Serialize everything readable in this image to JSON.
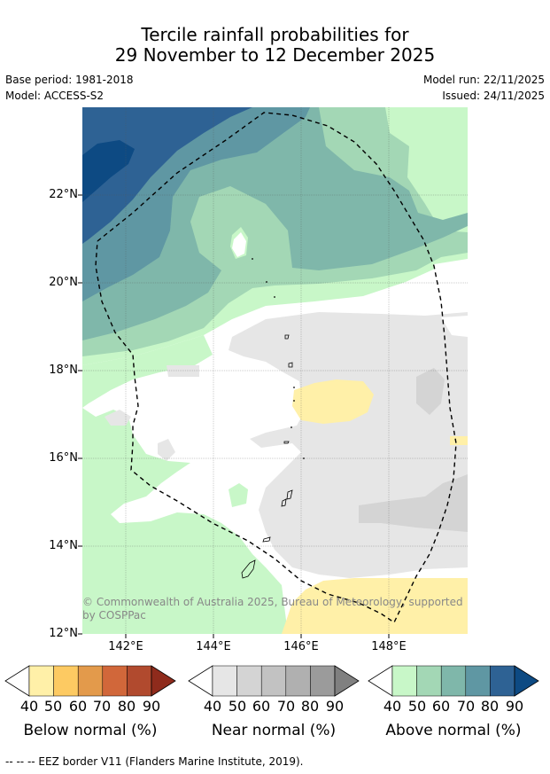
{
  "title": {
    "line1": "Tercile rainfall probabilities for",
    "line2": "29 November to 12 December 2025"
  },
  "meta": {
    "base_period": "Base period: 1981-2018",
    "model": "Model: ACCESS-S2",
    "model_run": "Model run: 22/11/2025",
    "issued": "Issued: 24/11/2025"
  },
  "map": {
    "lat_labels": [
      "22°N",
      "20°N",
      "18°N",
      "16°N",
      "14°N",
      "12°N"
    ],
    "lon_labels": [
      "142°E",
      "144°E",
      "146°E",
      "148°E"
    ],
    "copyright": "© Commonwealth of Australia 2025, Bureau of Meteorology, supported by COSPPac"
  },
  "colorbars": {
    "ticks": [
      "40",
      "50",
      "60",
      "70",
      "80",
      "90"
    ],
    "below": {
      "label": "Below normal (%)",
      "colors": [
        "#fff0a8",
        "#fdca62",
        "#e39a4b",
        "#d1673a",
        "#b14a2e",
        "#8f2b1c"
      ]
    },
    "near": {
      "label": "Near normal (%)",
      "colors": [
        "#e6e6e6",
        "#d4d4d4",
        "#c2c2c2",
        "#b0b0b0",
        "#9b9b9b",
        "#808080"
      ]
    },
    "above": {
      "label": "Above normal (%)",
      "colors": [
        "#c8f7c8",
        "#a3d7b5",
        "#7fb7aa",
        "#5f97a3",
        "#2e6294",
        "#0d4a83"
      ]
    }
  },
  "footer": "--  --  -- EEZ border V11 (Flanders Marine Institute, 2019)."
}
